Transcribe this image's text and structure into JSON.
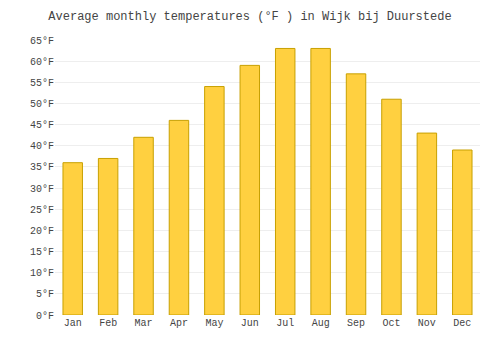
{
  "chart_data": {
    "type": "bar",
    "title": "Average monthly temperatures (°F ) in Wijk bij Duurstede",
    "categories": [
      "Jan",
      "Feb",
      "Mar",
      "Apr",
      "May",
      "Jun",
      "Jul",
      "Aug",
      "Sep",
      "Oct",
      "Nov",
      "Dec"
    ],
    "values": [
      36,
      37,
      42,
      46,
      54,
      59,
      63,
      63,
      57,
      51,
      43,
      39
    ],
    "color": "#FFD040",
    "ylim": [
      0,
      65
    ],
    "yticks": [
      {
        "value": 0,
        "label": "0°F"
      },
      {
        "value": 5,
        "label": "5°F"
      },
      {
        "value": 10,
        "label": "10°F"
      },
      {
        "value": 15,
        "label": "15°F"
      },
      {
        "value": 20,
        "label": "20°F"
      },
      {
        "value": 25,
        "label": "25°F"
      },
      {
        "value": 30,
        "label": "30°F"
      },
      {
        "value": 35,
        "label": "35°F"
      },
      {
        "value": 40,
        "label": "40°F"
      },
      {
        "value": 45,
        "label": "45°F"
      },
      {
        "value": 50,
        "label": "50°F"
      },
      {
        "value": 55,
        "label": "55°F"
      },
      {
        "value": 60,
        "label": "60°F"
      },
      {
        "value": 65,
        "label": "65°F"
      }
    ],
    "grid": true
  }
}
